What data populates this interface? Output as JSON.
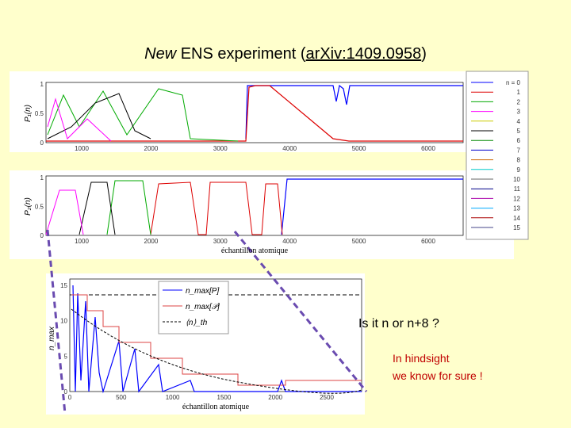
{
  "title": {
    "italic": "New",
    "text": " ENS experiment (",
    "link": "arXiv:1409.0958",
    "close": ")"
  },
  "plot1": {
    "y_label": "P₁(n)",
    "yticks": [
      "0",
      "0.5",
      "1"
    ],
    "xticks": [
      "1000",
      "2000",
      "3000",
      "4000",
      "5000",
      "6000"
    ]
  },
  "plot2": {
    "y_label": "P₂(n)",
    "yticks": [
      "0",
      "0.5",
      "1"
    ],
    "xticks": [
      "1000",
      "2000",
      "3000",
      "4000",
      "5000",
      "6000"
    ],
    "x_label": "échantillon atomique"
  },
  "legend": {
    "items": [
      "n = 0",
      "1",
      "2",
      "3",
      "4",
      "5",
      "6",
      "7",
      "8",
      "9",
      "10",
      "11",
      "12",
      "13",
      "14",
      "15"
    ]
  },
  "plot3": {
    "y_label": "n_max",
    "yticks": [
      "0",
      "5",
      "10",
      "15"
    ],
    "xticks": [
      "0",
      "500",
      "1000",
      "1500",
      "2000",
      "2500"
    ],
    "x_label": "échantillon atomique",
    "legend": [
      "n_max[P]",
      "n_max[𝒫]",
      "⟨n⟩_th"
    ]
  },
  "question": "Is it n or n+8 ?",
  "note": [
    "In hindsight",
    "we know for sure !"
  ]
}
